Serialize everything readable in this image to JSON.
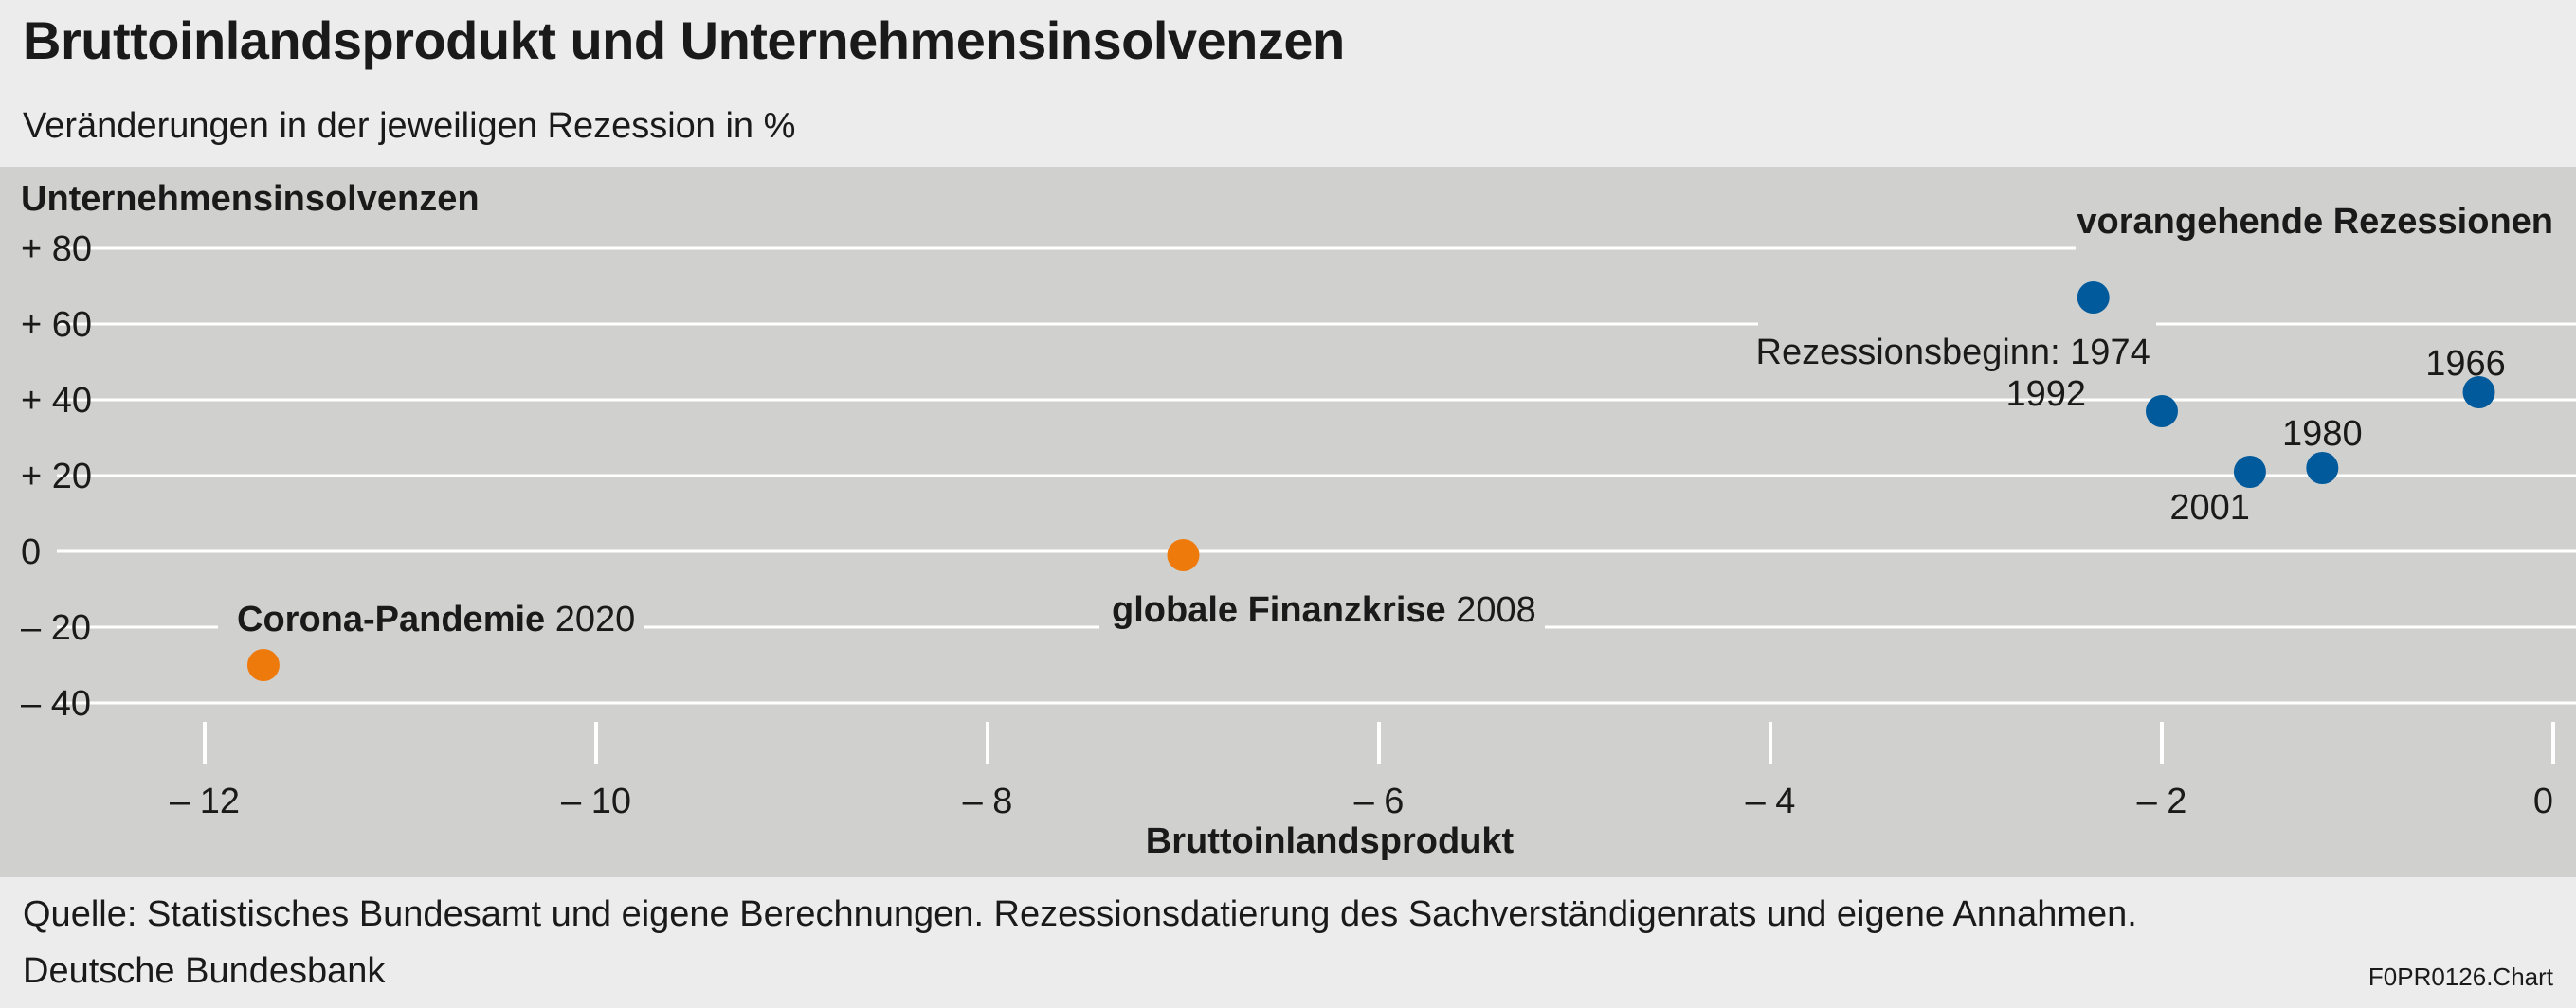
{
  "header": {
    "title": "Bruttoinlandsprodukt und Unternehmensinsolvenzen",
    "subtitle": "Veränderungen in der jeweiligen Rezession in %"
  },
  "footer": {
    "source": "Quelle: Statistisches Bundesamt und eigene Berechnungen. Rezessionsdatierung des Sachverständigenrats und eigene Annahmen.",
    "publisher": "Deutsche Bundesbank",
    "code": "F0PR0126.Chart"
  },
  "colors": {
    "previous": "#005a9c",
    "recent": "#ef7a0c",
    "panel": "#d0d0cf",
    "gridline": "#ffffff"
  },
  "chart_data": {
    "type": "scatter",
    "xlabel": "Bruttoinlandsprodukt",
    "ylabel": "Unternehmensinsolvenzen",
    "xlim": [
      -12.5,
      0
    ],
    "ylim": [
      -45,
      85
    ],
    "x_ticks": [
      -12,
      -10,
      -8,
      -6,
      -4,
      -2,
      0
    ],
    "x_tick_labels": [
      "– 12",
      "– 10",
      "– 8",
      "– 6",
      "– 4",
      "– 2",
      "0"
    ],
    "y_ticks": [
      80,
      60,
      40,
      20,
      0,
      -20,
      -40
    ],
    "y_tick_labels": [
      "+ 80",
      "+ 60",
      "+ 40",
      "+ 20",
      "0",
      "– 20",
      "– 40"
    ],
    "grid": "horizontal",
    "annotation": "vorangehende Rezessionen",
    "series": [
      {
        "name": "vorangehende Rezessionen",
        "color": "#005a9c",
        "points": [
          {
            "label": "Rezessionsbeginn: 1974",
            "x": -2.35,
            "y": 67
          },
          {
            "label": "1992",
            "x": -2.0,
            "y": 37
          },
          {
            "label": "2001",
            "x": -1.55,
            "y": 21
          },
          {
            "label": "1980",
            "x": -1.18,
            "y": 22
          },
          {
            "label": "1966",
            "x": -0.38,
            "y": 42
          }
        ]
      },
      {
        "color": "#ef7a0c",
        "points": [
          {
            "label_bold": "globale Finanzkrise",
            "label": " 2008",
            "x": -7.0,
            "y": -1
          },
          {
            "label_bold": "Corona-Pandemie",
            "label": " 2020",
            "x": -11.7,
            "y": -30
          }
        ]
      }
    ]
  }
}
